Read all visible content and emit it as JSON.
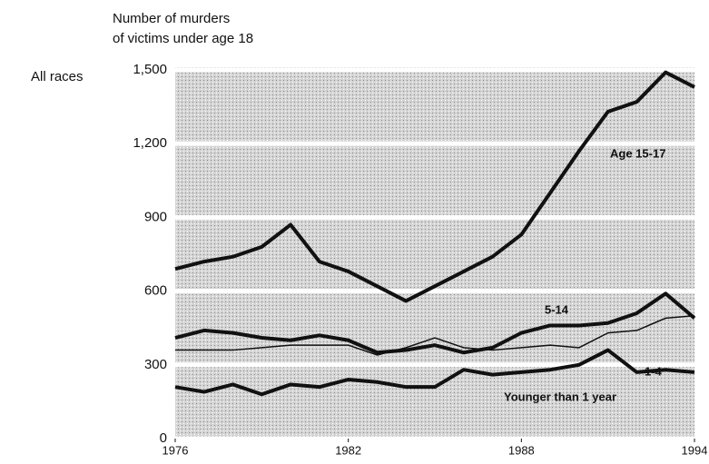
{
  "chart_data": {
    "type": "line",
    "subtitle": "All races",
    "ylabel": [
      "Number of murders",
      "of victims under age 18"
    ],
    "x": [
      1976,
      1977,
      1978,
      1979,
      1980,
      1981,
      1982,
      1983,
      1984,
      1985,
      1986,
      1987,
      1988,
      1989,
      1990,
      1991,
      1992,
      1993,
      1994
    ],
    "xlim": [
      1976,
      1994
    ],
    "xticks": [
      1976,
      1982,
      1988,
      1994
    ],
    "ylim": [
      0,
      1500
    ],
    "yticks": [
      0,
      300,
      600,
      900,
      {
        "value": 1200,
        "label": "1,200"
      },
      {
        "value": 1500,
        "label": "1,500"
      }
    ],
    "grid": true,
    "series": [
      {
        "name": "Age 15-17",
        "color": "#111111",
        "line_width": 4,
        "values": [
          690,
          720,
          740,
          780,
          870,
          720,
          680,
          620,
          560,
          620,
          680,
          740,
          830,
          1000,
          1170,
          1330,
          1370,
          1490,
          1430
        ]
      },
      {
        "name": "5-14",
        "color": "#111111",
        "line_width": 4,
        "values": [
          410,
          440,
          430,
          410,
          400,
          420,
          400,
          350,
          360,
          380,
          350,
          370,
          430,
          460,
          460,
          470,
          510,
          590,
          490
        ]
      },
      {
        "name": "1-4",
        "color": "#111111",
        "line_width": 1.5,
        "values": [
          360,
          360,
          360,
          370,
          380,
          380,
          380,
          340,
          370,
          410,
          370,
          360,
          370,
          380,
          370,
          430,
          440,
          490,
          500
        ]
      },
      {
        "name": "Younger than 1 year",
        "color": "#111111",
        "line_width": 4,
        "values": [
          210,
          190,
          220,
          180,
          220,
          210,
          240,
          230,
          210,
          210,
          280,
          260,
          270,
          280,
          300,
          360,
          270,
          280,
          270
        ]
      }
    ]
  }
}
